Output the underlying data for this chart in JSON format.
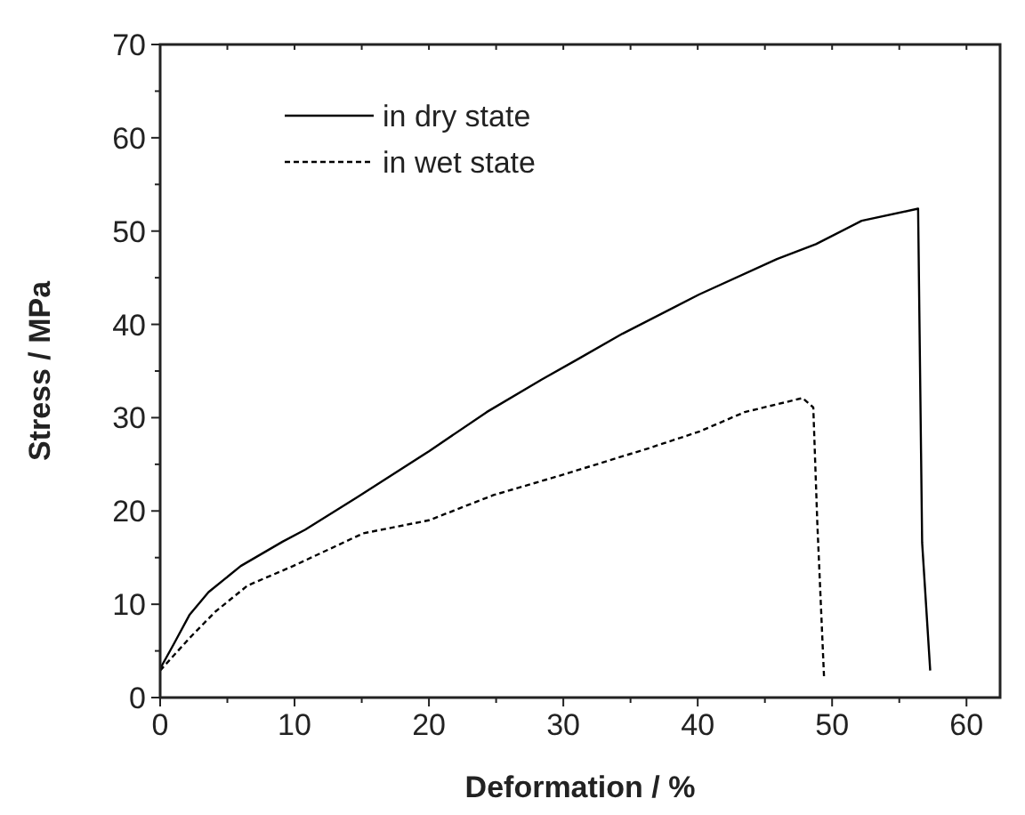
{
  "chart_data": {
    "type": "line",
    "xlabel": "Deformation / %",
    "ylabel": "Stress / MPa",
    "xlim": [
      0,
      62.5
    ],
    "ylim": [
      0,
      70
    ],
    "xticks": [
      0,
      {
        "value": 5,
        "label": null
      },
      10,
      {
        "value": 15,
        "label": null
      },
      20,
      {
        "value": 25,
        "label": null
      },
      30,
      {
        "value": 35,
        "label": null
      },
      40,
      {
        "value": 45,
        "label": null
      },
      50,
      {
        "value": 55,
        "label": null
      },
      60
    ],
    "yticks": [
      0,
      {
        "value": 5,
        "label": null
      },
      10,
      {
        "value": 15,
        "label": null
      },
      20,
      {
        "value": 25,
        "label": null
      },
      30,
      {
        "value": 35,
        "label": null
      },
      40,
      {
        "value": 45,
        "label": null
      },
      50,
      {
        "value": 55,
        "label": null
      },
      60,
      {
        "value": 65,
        "label": null
      },
      70
    ],
    "legend": "top left",
    "grid": false,
    "series": [
      {
        "name": "in dry state",
        "color": "#000000",
        "line_style": "solid",
        "x": [
          0,
          1,
          2.2,
          3.6,
          6,
          9.1,
          10.8,
          14.7,
          20,
          24.3,
          28.4,
          31,
          34.4,
          40.1,
          45.9,
          48.8,
          52.2,
          56.4,
          56.7,
          57.3
        ],
        "values": [
          3.1,
          5.7,
          8.9,
          11.3,
          14.1,
          16.7,
          18,
          21.5,
          26.4,
          30.6,
          34.1,
          36.2,
          39,
          43.2,
          47,
          48.6,
          51.1,
          52.4,
          16.6,
          2.9
        ]
      },
      {
        "name": "in wet state",
        "color": "#000000",
        "line_style": "dashed",
        "x": [
          0,
          2.2,
          4.1,
          6.5,
          9.9,
          15.1,
          20,
          24.8,
          30,
          36.3,
          40.1,
          43.5,
          47.8,
          48.6,
          48.9,
          49.4
        ],
        "values": [
          2.9,
          6.4,
          9.2,
          12,
          14.1,
          17.6,
          19,
          21.7,
          23.9,
          26.7,
          28.5,
          30.6,
          32.1,
          31.1,
          18.7,
          2.2
        ]
      }
    ]
  }
}
